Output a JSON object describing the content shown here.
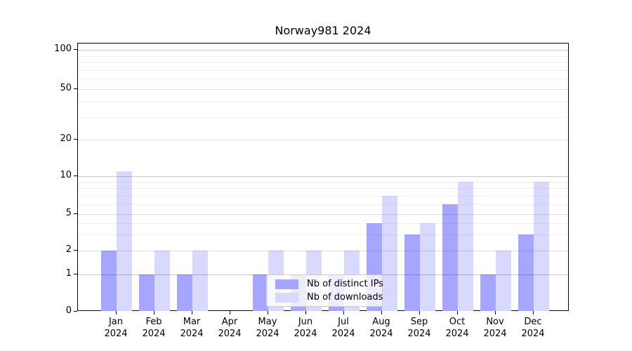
{
  "chart_data": {
    "type": "bar",
    "title": "Norway981 2024",
    "categories": [
      "Jan",
      "Feb",
      "Mar",
      "Apr",
      "May",
      "Jun",
      "Jul",
      "Aug",
      "Sep",
      "Oct",
      "Nov",
      "Dec"
    ],
    "category_year": "2024",
    "series": [
      {
        "name": "Nb of distinct IPs",
        "color": "#a6a6ff",
        "values": [
          2,
          1,
          1,
          0,
          1,
          1,
          1,
          4,
          3,
          6,
          1,
          3
        ]
      },
      {
        "name": "Nb of downloads",
        "color": "#d9d9ff",
        "values": [
          11,
          2,
          2,
          0,
          2,
          2,
          2,
          7,
          4,
          9,
          2,
          9
        ]
      }
    ],
    "xlabel": "",
    "ylabel": "",
    "y_axis": {
      "scale": "symlog",
      "tick_labels": [
        "0",
        "1",
        "2",
        "5",
        "10",
        "20",
        "50",
        "100"
      ],
      "ticks": [
        0,
        1,
        2,
        5,
        10,
        20,
        50,
        100
      ],
      "minor_gridlines": [
        3,
        4,
        6,
        7,
        8,
        9,
        30,
        40,
        60,
        70,
        80,
        90
      ],
      "ylim": [
        0,
        110
      ]
    },
    "legend": {
      "position": "bottom-center",
      "entries": [
        "Nb of distinct IPs",
        "Nb of downloads"
      ]
    },
    "grid": "on"
  }
}
